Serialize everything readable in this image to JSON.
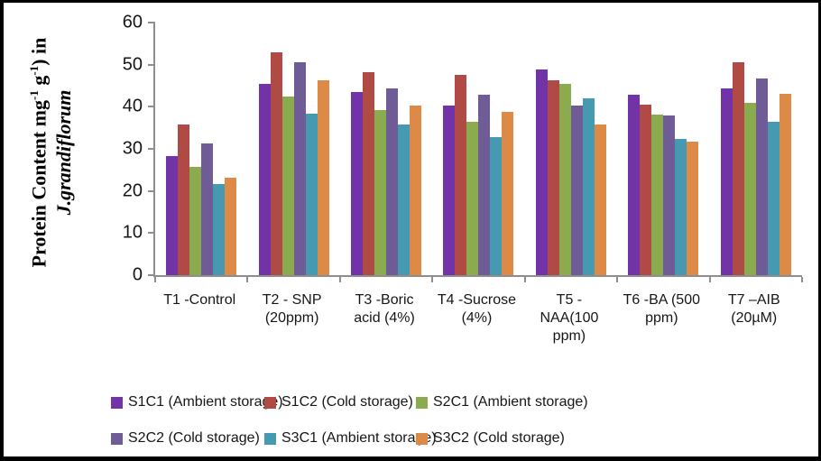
{
  "frame": {
    "border_color": "#000000",
    "background": "#ffffff"
  },
  "chart_data": {
    "type": "bar",
    "title": "",
    "ylabel": "Protein Content mg-1 g-1) in J.grandiflorum",
    "ylabel_parts": {
      "part1": "Protein Content mg",
      "sup1": "-1",
      "part2": " g",
      "sup2": "-1",
      "part3": ") in",
      "line2": "J.grandiflorum"
    },
    "xlabel": "",
    "ylim": [
      0,
      60
    ],
    "yticks": [
      0,
      10,
      20,
      30,
      40,
      50,
      60
    ],
    "grid": false,
    "legend_position": "bottom",
    "axis_color": "#8e8e8e",
    "categories": [
      "T1 -Control",
      "T2 - SNP (20ppm)",
      "T3 -Boric acid (4%)",
      "T4 -Sucrose (4%)",
      "T5 - NAA(100 ppm)",
      "T6 -BA (500 ppm)",
      "T7 –AIB (20µM)"
    ],
    "category_lines": [
      [
        "T1 -Control"
      ],
      [
        "T2 - SNP",
        "(20ppm)"
      ],
      [
        "T3 -Boric",
        "acid (4%)"
      ],
      [
        "T4 -Sucrose",
        "(4%)"
      ],
      [
        "T5 -",
        "NAA(100",
        "ppm)"
      ],
      [
        "T6 -BA (500",
        "ppm)"
      ],
      [
        "T7 –AIB",
        "(20µM)"
      ]
    ],
    "series": [
      {
        "name": "S1C1 (Ambient storage)",
        "color": "#7232a8",
        "values": [
          28.3,
          45.4,
          43.6,
          40.2,
          48.9,
          42.8,
          44.3
        ]
      },
      {
        "name": "S1C2 (Cold storage)",
        "color": "#af4a45",
        "values": [
          35.7,
          52.9,
          48.2,
          47.5,
          46.4,
          40.5,
          50.6
        ]
      },
      {
        "name": "S2C1 (Ambient storage)",
        "color": "#8bab4f",
        "values": [
          25.7,
          42.4,
          39.3,
          36.4,
          45.4,
          38.1,
          40.9
        ]
      },
      {
        "name": "S2C2 (Cold storage)",
        "color": "#6f5c96",
        "values": [
          31.2,
          50.6,
          44.3,
          42.8,
          40.3,
          37.9,
          46.8
        ]
      },
      {
        "name": "S3C1 (Ambient storage)",
        "color": "#4599b1",
        "values": [
          21.6,
          38.4,
          35.8,
          32.7,
          42.0,
          32.4,
          36.5
        ]
      },
      {
        "name": "S3C2 (Cold storage)",
        "color": "#dc8a45",
        "values": [
          23.2,
          46.4,
          40.2,
          38.7,
          35.7,
          31.8,
          43.0
        ]
      }
    ]
  }
}
